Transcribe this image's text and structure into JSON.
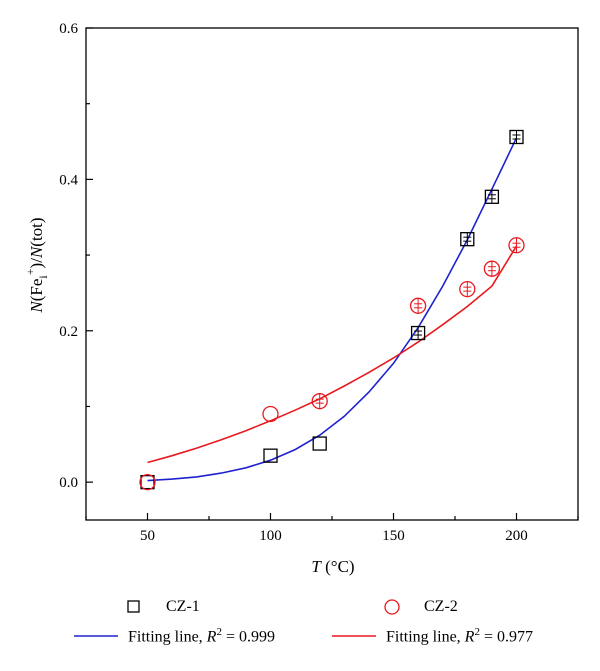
{
  "chart_data": {
    "type": "scatter",
    "xlabel": "T (°C)",
    "ylabel": "N(Fei+)/N(tot)",
    "xlim": [
      25,
      225
    ],
    "ylim": [
      -0.05,
      0.6
    ],
    "xticks": [
      50,
      100,
      150,
      200
    ],
    "yticks": [
      0.0,
      0.2,
      0.4,
      0.6
    ],
    "x_tick_labels": [
      "50",
      "100",
      "150",
      "200"
    ],
    "y_tick_labels": [
      "0.0",
      "0.2",
      "0.4",
      "0.6"
    ],
    "grid": false,
    "legend_position": "bottom",
    "series": [
      {
        "name": "CZ-1",
        "marker": "square",
        "color": "#000000",
        "x": [
          50,
          100,
          120,
          160,
          180,
          190,
          200
        ],
        "y": [
          0.0,
          0.035,
          0.051,
          0.197,
          0.321,
          0.377,
          0.456
        ]
      },
      {
        "name": "CZ-2",
        "marker": "circle",
        "color": "#e8191e",
        "x": [
          50,
          100,
          120,
          160,
          180,
          190,
          200
        ],
        "y": [
          0.0,
          0.09,
          0.107,
          0.233,
          0.255,
          0.282,
          0.313
        ]
      },
      {
        "name": "Fitting line, R2 = 0.999",
        "line": true,
        "color": "#1f22d0",
        "x": [
          50,
          60,
          70,
          80,
          90,
          100,
          110,
          120,
          130,
          140,
          150,
          160,
          170,
          180,
          190,
          200
        ],
        "y": [
          0.002,
          0.004,
          0.007,
          0.012,
          0.019,
          0.029,
          0.043,
          0.062,
          0.087,
          0.119,
          0.157,
          0.204,
          0.259,
          0.32,
          0.387,
          0.455
        ]
      },
      {
        "name": "Fitting line, R2 = 0.977",
        "line": true,
        "color": "#e8191e",
        "x": [
          50,
          60,
          70,
          80,
          90,
          100,
          110,
          120,
          130,
          140,
          150,
          160,
          170,
          180,
          190,
          200
        ],
        "y": [
          0.026,
          0.035,
          0.045,
          0.056,
          0.068,
          0.081,
          0.095,
          0.11,
          0.127,
          0.145,
          0.164,
          0.185,
          0.208,
          0.232,
          0.259,
          0.312
        ]
      }
    ]
  },
  "legend": {
    "cz1": "CZ-1",
    "cz2": "CZ-2",
    "fit1_prefix": "Fitting line, ",
    "fit1_r": "R",
    "fit1_exp": "2",
    "fit1_value": " = 0.999",
    "fit2_prefix": "Fitting line, ",
    "fit2_r": "R",
    "fit2_exp": "2",
    "fit2_value": " = 0.977"
  },
  "axis_text": {
    "x_var": "T",
    "x_unit": " (°C)",
    "y_n1": "N",
    "y_open": "(Fe",
    "y_sub": "i",
    "y_sup": "+",
    "y_mid": ")/",
    "y_n2": "N",
    "y_tot": "(tot)"
  }
}
